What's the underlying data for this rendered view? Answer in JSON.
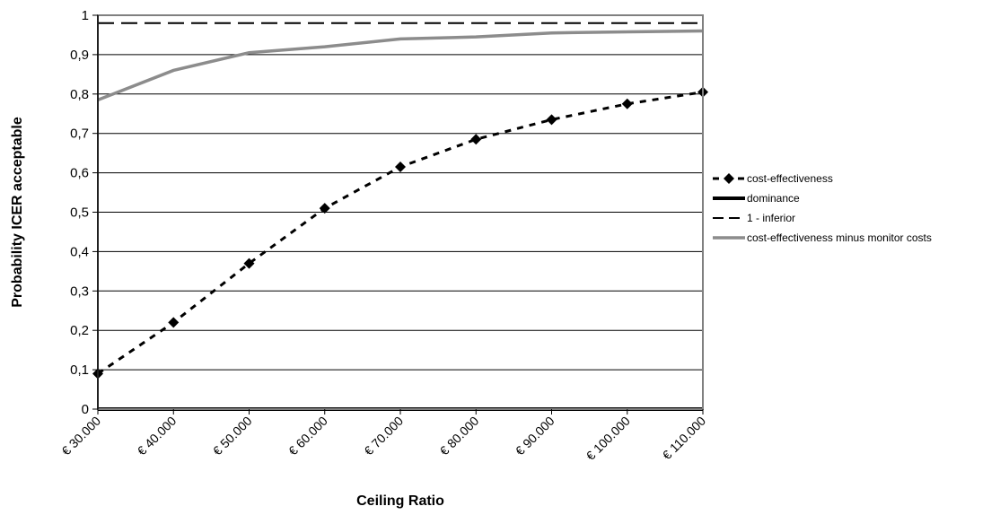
{
  "chart_data": {
    "type": "line",
    "title": "",
    "xlabel": "Ceiling Ratio",
    "ylabel": "Probability ICER acceptable",
    "categories": [
      "€ 30.000",
      "€ 40.000",
      "€ 50.000",
      "€ 60.000",
      "€ 70.000",
      "€ 80.000",
      "€ 90.000",
      "€ 100.000",
      "€ 110.000"
    ],
    "y_ticks": [
      "0",
      "0,1",
      "0,2",
      "0,3",
      "0,4",
      "0,5",
      "0,6",
      "0,7",
      "0,8",
      "0,9",
      "1"
    ],
    "ylim": [
      0,
      1
    ],
    "grid": "horizontal",
    "legend_position": "right",
    "series": [
      {
        "name": "cost-effectiveness",
        "style": "dotted-markers",
        "color": "#000000",
        "values": [
          0.09,
          0.22,
          0.37,
          0.51,
          0.615,
          0.685,
          0.735,
          0.775,
          0.805
        ]
      },
      {
        "name": "dominance",
        "style": "solid",
        "color": "#000000",
        "values": [
          0,
          0,
          0,
          0,
          0,
          0,
          0,
          0,
          0
        ]
      },
      {
        "name": "1 - inferior",
        "style": "dashed",
        "color": "#000000",
        "values": [
          0.98,
          0.98,
          0.98,
          0.98,
          0.98,
          0.98,
          0.98,
          0.98,
          0.98
        ]
      },
      {
        "name": "cost-effectiveness minus monitor costs",
        "style": "solid",
        "color": "#8c8c8c",
        "values": [
          0.785,
          0.86,
          0.905,
          0.92,
          0.94,
          0.945,
          0.955,
          0.958,
          0.96
        ]
      }
    ]
  }
}
